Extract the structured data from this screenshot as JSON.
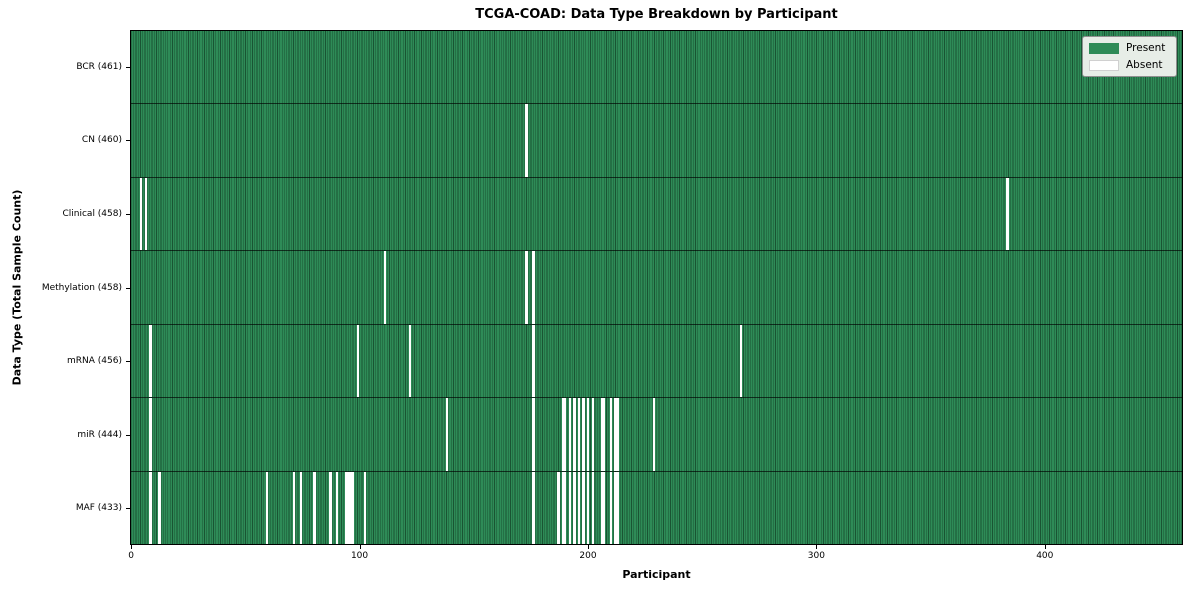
{
  "title": "TCGA-COAD: Data Type Breakdown by Participant",
  "xlabel": "Participant",
  "ylabel": "Data Type (Total Sample Count)",
  "legend": {
    "present_label": "Present",
    "absent_label": "Absent",
    "background": "#e7ede7",
    "border_color": "#8f8f8f"
  },
  "colors": {
    "present": "#2e8b57",
    "absent": "#ffffff",
    "bar_edge": "rgba(8,38,22,0.55)",
    "row_divider": "rgba(0,0,0,0.65)",
    "axis": "#000000"
  },
  "chart_data": {
    "type": "heatmap",
    "title": "TCGA-COAD: Data Type Breakdown by Participant",
    "xlabel": "Participant",
    "ylabel": "Data Type (Total Sample Count)",
    "legend_entries": [
      "Present",
      "Absent"
    ],
    "legend_position": "upper right",
    "x_ticks": [
      0,
      100,
      200,
      300,
      400
    ],
    "total_participants": 461,
    "rows": [
      {
        "name": "BCR",
        "label": "BCR (461)",
        "present_count": 461,
        "absent_participants": []
      },
      {
        "name": "CN",
        "label": "CN (460)",
        "present_count": 460,
        "absent_participants": [
          173
        ]
      },
      {
        "name": "Clinical",
        "label": "Clinical (458)",
        "present_count": 458,
        "absent_participants": [
          4,
          6,
          384
        ]
      },
      {
        "name": "Methylation",
        "label": "Methylation (458)",
        "present_count": 458,
        "absent_participants": [
          111,
          173,
          176
        ]
      },
      {
        "name": "mRNA",
        "label": "mRNA (456)",
        "present_count": 456,
        "absent_participants": [
          8,
          99,
          122,
          176,
          267
        ]
      },
      {
        "name": "miR",
        "label": "miR (444)",
        "present_count": 444,
        "absent_participants": [
          8,
          138,
          176,
          189,
          190,
          192,
          194,
          196,
          198,
          200,
          202,
          206,
          207,
          210,
          212,
          213,
          229
        ]
      },
      {
        "name": "MAF",
        "label": "MAF (433)",
        "present_count": 433,
        "absent_participants": [
          8,
          12,
          59,
          71,
          74,
          80,
          87,
          90,
          94,
          95,
          96,
          97,
          102,
          176,
          187,
          189,
          190,
          192,
          194,
          196,
          198,
          200,
          202,
          206,
          207,
          210,
          212,
          213
        ]
      }
    ]
  }
}
